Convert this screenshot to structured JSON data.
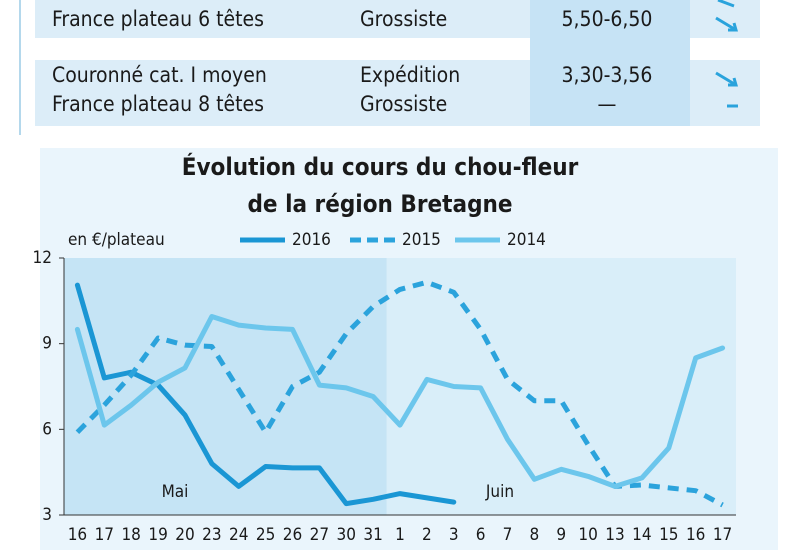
{
  "table": {
    "rows": [
      {
        "product": [
          "France plateau 6 têtes"
        ],
        "stage": [
          "Grossiste"
        ],
        "price": [
          "5,50-6,50"
        ]
      },
      {
        "product": [
          "Couronné cat. I moyen",
          "France plateau 8 têtes"
        ],
        "stage": [
          "Expédition",
          "Grossiste"
        ],
        "price": [
          "3,30-3,56",
          "—"
        ]
      }
    ]
  },
  "chart_data": {
    "type": "line",
    "title": [
      "Évolution du cours du chou-fleur",
      "de la région Bretagne"
    ],
    "ylabel": "en €/plateau",
    "annotations": [
      "Mai",
      "Juin"
    ],
    "categories": [
      "16",
      "17",
      "18",
      "19",
      "20",
      "23",
      "24",
      "25",
      "26",
      "27",
      "30",
      "31",
      "1",
      "2",
      "3",
      "6",
      "7",
      "8",
      "9",
      "10",
      "13",
      "14",
      "15",
      "16",
      "17"
    ],
    "ylim": [
      3,
      12
    ],
    "yticks": [
      3,
      6,
      9,
      12
    ],
    "series": [
      {
        "name": "2016",
        "color": "#1a96d4",
        "dashed": false,
        "values": [
          11.05,
          7.8,
          8.0,
          7.55,
          6.5,
          4.8,
          4.0,
          4.7,
          4.65,
          4.65,
          3.4,
          3.55,
          3.75,
          3.6,
          3.45,
          null,
          null,
          null,
          null,
          null,
          null,
          null,
          null,
          null,
          null
        ]
      },
      {
        "name": "2015",
        "color": "#2ba3dc",
        "dashed": true,
        "values": [
          5.9,
          6.85,
          7.9,
          9.2,
          8.95,
          8.9,
          7.4,
          5.9,
          7.5,
          8.0,
          9.35,
          10.3,
          10.9,
          11.15,
          10.8,
          9.5,
          7.75,
          7.0,
          7.0,
          5.45,
          4.0,
          4.05,
          3.95,
          3.85,
          3.35
        ]
      },
      {
        "name": "2014",
        "color": "#6cc6ec",
        "dashed": false,
        "values": [
          9.5,
          6.15,
          6.85,
          7.65,
          8.15,
          9.95,
          9.65,
          9.55,
          9.5,
          7.55,
          7.45,
          7.15,
          6.15,
          7.75,
          7.5,
          7.45,
          5.65,
          4.25,
          4.6,
          4.35,
          4.0,
          4.3,
          5.35,
          8.5,
          8.85
        ]
      }
    ]
  }
}
